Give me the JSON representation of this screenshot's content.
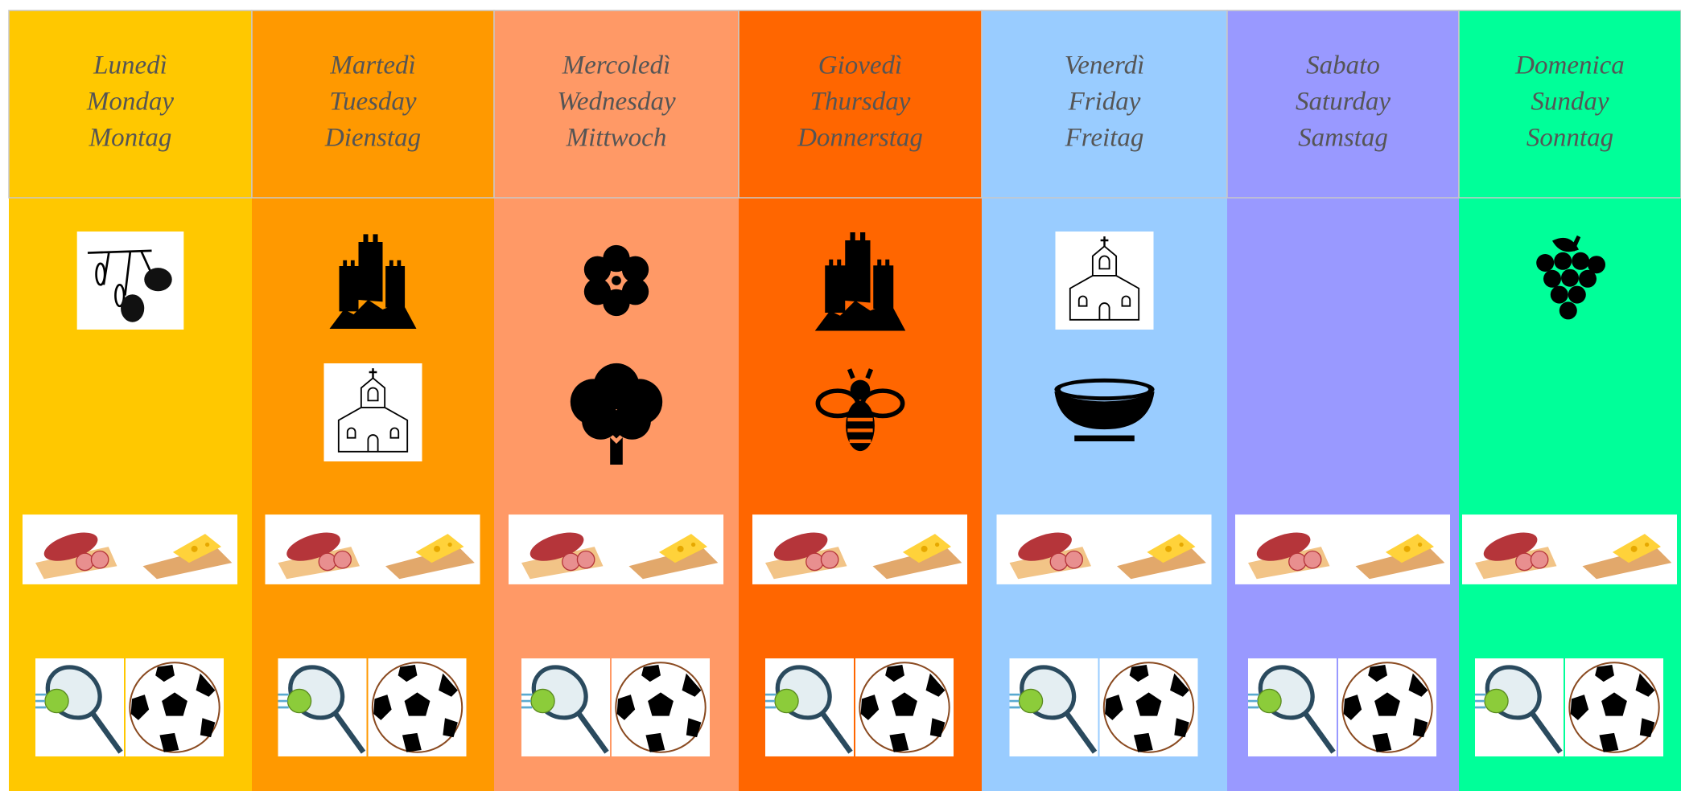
{
  "days": [
    {
      "it": "Lunedì",
      "en": "Monday",
      "de": "Montag"
    },
    {
      "it": "Martedì",
      "en": "Tuesday",
      "de": "Dienstag"
    },
    {
      "it": "Mercoledì",
      "en": "Wednesday",
      "de": "Mittwoch"
    },
    {
      "it": "Giovedì",
      "en": "Thursday",
      "de": "Donnerstag"
    },
    {
      "it": "Venerdì",
      "en": "Friday",
      "de": "Freitag"
    },
    {
      "it": "Sabato",
      "en": "Saturday",
      "de": "Samstag"
    },
    {
      "it": "Domenica",
      "en": "Sunday",
      "de": "Sonntag"
    }
  ]
}
